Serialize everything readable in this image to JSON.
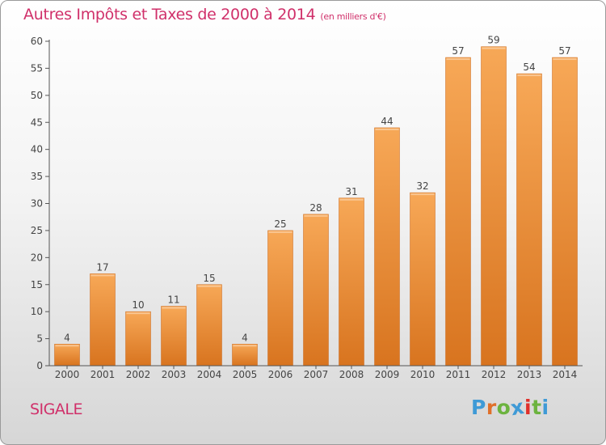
{
  "title": "Autres Impôts et Taxes de 2000 à 2014",
  "subtitle": "(en milliers d'€)",
  "location_label": "SIGALE",
  "logo_text": "Proxiti",
  "colors": {
    "title": "#d0306a",
    "bar_light": "#f7a857",
    "bar_dark": "#d8741f",
    "logo": [
      "#3f9ad6",
      "#e0702a",
      "#6cb33f",
      "#3f9ad6",
      "#e0302a",
      "#6cb33f",
      "#3f9ad6"
    ]
  },
  "chart_data": {
    "type": "bar",
    "title": "Autres Impôts et Taxes de 2000 à 2014",
    "subtitle": "(en milliers d'€)",
    "xlabel": "",
    "ylabel": "",
    "categories": [
      "2000",
      "2001",
      "2002",
      "2003",
      "2004",
      "2005",
      "2006",
      "2007",
      "2008",
      "2009",
      "2010",
      "2011",
      "2012",
      "2013",
      "2014"
    ],
    "values": [
      4,
      17,
      10,
      11,
      15,
      4,
      25,
      28,
      31,
      44,
      32,
      57,
      59,
      54,
      57
    ],
    "ylim": [
      0,
      60
    ],
    "yticks": [
      0,
      5,
      10,
      15,
      20,
      25,
      30,
      35,
      40,
      45,
      50,
      55,
      60
    ],
    "grid": false,
    "data_labels": true
  }
}
